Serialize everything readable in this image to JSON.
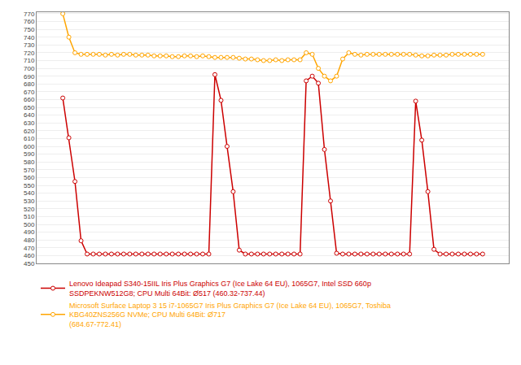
{
  "chart_data": {
    "type": "line",
    "categories": [
      null,
      null,
      null,
      null,
      null,
      null,
      null,
      null,
      null,
      null,
      null,
      null,
      null,
      null,
      null,
      null,
      null,
      null,
      null,
      null,
      null,
      null,
      null,
      null,
      null,
      null,
      null,
      null,
      null,
      null,
      null,
      null,
      null,
      null,
      null,
      null,
      null,
      null,
      null,
      null,
      null,
      null,
      null,
      null,
      null,
      null,
      null,
      null,
      null,
      null,
      null,
      null,
      null,
      null,
      null,
      null,
      null,
      null,
      null,
      null,
      null,
      null,
      null,
      null,
      null,
      null,
      null,
      null,
      null,
      null
    ],
    "series": [
      {
        "name": "Lenovo Ideapad S340-15IIL Iris Plus Graphics G7 (Ice Lake 64 EU), 1065G7, Intel SSD 660p SSDPEKNW512G8; CPU Multi 64Bit: Ø517 (460.32-737.44)",
        "color": "#cc0000",
        "marker": "circle",
        "line_style": "solid",
        "values": [
          662,
          611,
          555,
          479,
          462,
          462,
          462,
          462,
          462,
          462,
          462,
          462,
          462,
          462,
          462,
          462,
          462,
          462,
          462,
          462,
          462,
          462,
          462,
          462,
          462,
          692,
          659,
          600,
          542,
          467,
          462,
          462,
          462,
          462,
          462,
          462,
          462,
          462,
          462,
          462,
          684,
          690,
          681,
          596,
          530,
          463,
          462,
          462,
          462,
          462,
          462,
          462,
          462,
          462,
          462,
          462,
          462,
          462,
          658,
          608,
          542,
          468,
          462,
          462,
          462,
          462,
          462,
          462,
          462,
          462
        ]
      },
      {
        "name": "Microsoft Surface Laptop 3 15 i7-1065G7 Iris Plus Graphics G7 (Ice Lake 64 EU), 1065G7, Toshiba KBG40ZNS256G NVMe; CPU Multi 64Bit: Ø717\n(684.67-772.41)",
        "color": "#ffa500",
        "marker": "circle",
        "line_style": "solid",
        "values": [
          770,
          740,
          720,
          718,
          718,
          718,
          718,
          717,
          718,
          717,
          718,
          718,
          717,
          717,
          717,
          716,
          716,
          716,
          715,
          715,
          716,
          716,
          715,
          716,
          715,
          714,
          714,
          714,
          714,
          713,
          712,
          712,
          711,
          710,
          710,
          711,
          710,
          711,
          711,
          711,
          720,
          718,
          700,
          690,
          684,
          690,
          712,
          720,
          718,
          717,
          718,
          718,
          718,
          718,
          718,
          718,
          718,
          718,
          717,
          716,
          716,
          717,
          717,
          717,
          718,
          718,
          718,
          718,
          718,
          718
        ]
      }
    ],
    "ylim": [
      450,
      772
    ],
    "yticks": [
      450,
      460,
      470,
      480,
      490,
      500,
      510,
      520,
      530,
      540,
      550,
      560,
      570,
      580,
      590,
      600,
      610,
      620,
      630,
      640,
      650,
      660,
      670,
      680,
      690,
      700,
      710,
      720,
      730,
      740,
      750,
      760,
      770
    ],
    "grid": true,
    "legend": "lower left",
    "tick_labels": "y"
  }
}
